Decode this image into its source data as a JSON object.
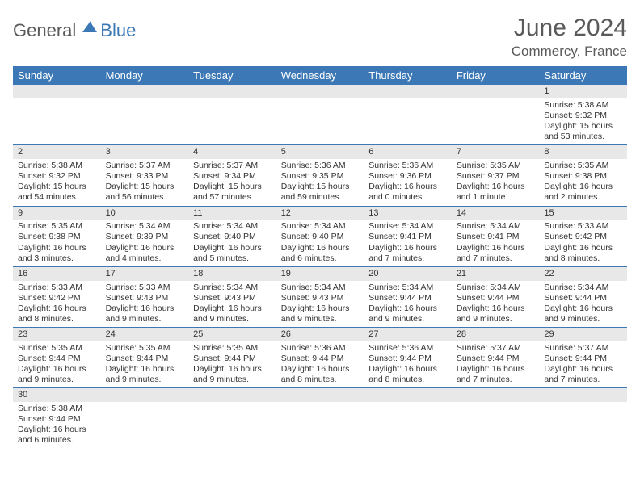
{
  "brand": {
    "part1": "General",
    "part2": "Blue"
  },
  "title": "June 2024",
  "location": "Commercy, France",
  "colors": {
    "header_bg": "#3b78b5",
    "header_text": "#ffffff",
    "daynum_bg": "#e8e8e8",
    "row_border": "#3b78b5",
    "text": "#333333",
    "brand_gray": "#5a5a5a",
    "brand_blue": "#3b78b5"
  },
  "weekdays": [
    "Sunday",
    "Monday",
    "Tuesday",
    "Wednesday",
    "Thursday",
    "Friday",
    "Saturday"
  ],
  "weeks": [
    [
      null,
      null,
      null,
      null,
      null,
      null,
      {
        "n": "1",
        "sunrise": "5:38 AM",
        "sunset": "9:32 PM",
        "daylight": "15 hours and 53 minutes."
      }
    ],
    [
      {
        "n": "2",
        "sunrise": "5:38 AM",
        "sunset": "9:32 PM",
        "daylight": "15 hours and 54 minutes."
      },
      {
        "n": "3",
        "sunrise": "5:37 AM",
        "sunset": "9:33 PM",
        "daylight": "15 hours and 56 minutes."
      },
      {
        "n": "4",
        "sunrise": "5:37 AM",
        "sunset": "9:34 PM",
        "daylight": "15 hours and 57 minutes."
      },
      {
        "n": "5",
        "sunrise": "5:36 AM",
        "sunset": "9:35 PM",
        "daylight": "15 hours and 59 minutes."
      },
      {
        "n": "6",
        "sunrise": "5:36 AM",
        "sunset": "9:36 PM",
        "daylight": "16 hours and 0 minutes."
      },
      {
        "n": "7",
        "sunrise": "5:35 AM",
        "sunset": "9:37 PM",
        "daylight": "16 hours and 1 minute."
      },
      {
        "n": "8",
        "sunrise": "5:35 AM",
        "sunset": "9:38 PM",
        "daylight": "16 hours and 2 minutes."
      }
    ],
    [
      {
        "n": "9",
        "sunrise": "5:35 AM",
        "sunset": "9:38 PM",
        "daylight": "16 hours and 3 minutes."
      },
      {
        "n": "10",
        "sunrise": "5:34 AM",
        "sunset": "9:39 PM",
        "daylight": "16 hours and 4 minutes."
      },
      {
        "n": "11",
        "sunrise": "5:34 AM",
        "sunset": "9:40 PM",
        "daylight": "16 hours and 5 minutes."
      },
      {
        "n": "12",
        "sunrise": "5:34 AM",
        "sunset": "9:40 PM",
        "daylight": "16 hours and 6 minutes."
      },
      {
        "n": "13",
        "sunrise": "5:34 AM",
        "sunset": "9:41 PM",
        "daylight": "16 hours and 7 minutes."
      },
      {
        "n": "14",
        "sunrise": "5:34 AM",
        "sunset": "9:41 PM",
        "daylight": "16 hours and 7 minutes."
      },
      {
        "n": "15",
        "sunrise": "5:33 AM",
        "sunset": "9:42 PM",
        "daylight": "16 hours and 8 minutes."
      }
    ],
    [
      {
        "n": "16",
        "sunrise": "5:33 AM",
        "sunset": "9:42 PM",
        "daylight": "16 hours and 8 minutes."
      },
      {
        "n": "17",
        "sunrise": "5:33 AM",
        "sunset": "9:43 PM",
        "daylight": "16 hours and 9 minutes."
      },
      {
        "n": "18",
        "sunrise": "5:34 AM",
        "sunset": "9:43 PM",
        "daylight": "16 hours and 9 minutes."
      },
      {
        "n": "19",
        "sunrise": "5:34 AM",
        "sunset": "9:43 PM",
        "daylight": "16 hours and 9 minutes."
      },
      {
        "n": "20",
        "sunrise": "5:34 AM",
        "sunset": "9:44 PM",
        "daylight": "16 hours and 9 minutes."
      },
      {
        "n": "21",
        "sunrise": "5:34 AM",
        "sunset": "9:44 PM",
        "daylight": "16 hours and 9 minutes."
      },
      {
        "n": "22",
        "sunrise": "5:34 AM",
        "sunset": "9:44 PM",
        "daylight": "16 hours and 9 minutes."
      }
    ],
    [
      {
        "n": "23",
        "sunrise": "5:35 AM",
        "sunset": "9:44 PM",
        "daylight": "16 hours and 9 minutes."
      },
      {
        "n": "24",
        "sunrise": "5:35 AM",
        "sunset": "9:44 PM",
        "daylight": "16 hours and 9 minutes."
      },
      {
        "n": "25",
        "sunrise": "5:35 AM",
        "sunset": "9:44 PM",
        "daylight": "16 hours and 9 minutes."
      },
      {
        "n": "26",
        "sunrise": "5:36 AM",
        "sunset": "9:44 PM",
        "daylight": "16 hours and 8 minutes."
      },
      {
        "n": "27",
        "sunrise": "5:36 AM",
        "sunset": "9:44 PM",
        "daylight": "16 hours and 8 minutes."
      },
      {
        "n": "28",
        "sunrise": "5:37 AM",
        "sunset": "9:44 PM",
        "daylight": "16 hours and 7 minutes."
      },
      {
        "n": "29",
        "sunrise": "5:37 AM",
        "sunset": "9:44 PM",
        "daylight": "16 hours and 7 minutes."
      }
    ],
    [
      {
        "n": "30",
        "sunrise": "5:38 AM",
        "sunset": "9:44 PM",
        "daylight": "16 hours and 6 minutes."
      },
      null,
      null,
      null,
      null,
      null,
      null
    ]
  ],
  "labels": {
    "sunrise": "Sunrise:",
    "sunset": "Sunset:",
    "daylight": "Daylight:"
  }
}
